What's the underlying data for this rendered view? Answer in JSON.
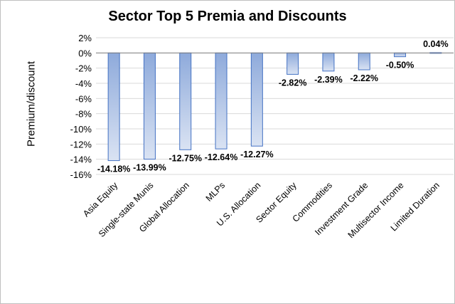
{
  "chart_data": {
    "type": "bar",
    "title": "Sector Top 5 Premia and Discounts",
    "ylabel": "Premium/discount",
    "xlabel": "",
    "categories": [
      "Asia Equity",
      "Single-state Munis",
      "Global Allocation",
      "MLPs",
      "U.S. Allocation",
      "Sector Equity",
      "Commodities",
      "Investment Grade",
      "Multisector Income",
      "Limited Duration"
    ],
    "values": [
      -14.18,
      -13.99,
      -12.75,
      -12.64,
      -12.27,
      -2.82,
      -2.39,
      -2.22,
      -0.5,
      0.04
    ],
    "data_labels": [
      "-14.18%",
      "-13.99%",
      "-12.75%",
      "-12.64%",
      "-12.27%",
      "-2.82%",
      "-2.39%",
      "-2.22%",
      "-0.50%",
      "0.04%"
    ],
    "yticks": [
      2,
      0,
      -2,
      -4,
      -6,
      -8,
      -10,
      -12,
      -14,
      -16
    ],
    "ytick_labels": [
      "2%",
      "0%",
      "-2%",
      "-4%",
      "-6%",
      "-8%",
      "-10%",
      "-12%",
      "-14%",
      "-16%"
    ],
    "ylim": [
      -16,
      2
    ],
    "grid": true,
    "legend": "none",
    "colors": {
      "bar_fill_top": "#8eaadb",
      "bar_fill_bottom": "#dae3f3",
      "bar_border": "#4472c4",
      "grid": "#d9d9d9"
    }
  }
}
